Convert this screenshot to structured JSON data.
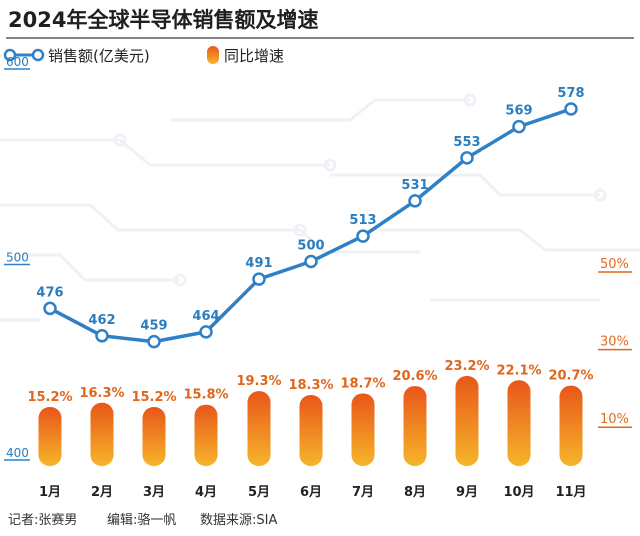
{
  "title": "2024年全球半导体销售额及增速",
  "legend": {
    "line": "销售额(亿美元)",
    "bar": "同比增速"
  },
  "footer": {
    "reporter": "记者:张赛男",
    "editor": "编辑:骆一帆",
    "source": "数据来源:SIA"
  },
  "colors": {
    "line": "#2f80c7",
    "bar_top": "#f6b52a",
    "bar_bottom": "#e8561a",
    "pct_text": "#e0661c"
  },
  "chart_data": {
    "type": "bar+line",
    "categories": [
      "1月",
      "2月",
      "3月",
      "4月",
      "5月",
      "6月",
      "7月",
      "8月",
      "9月",
      "10月",
      "11月"
    ],
    "series": [
      {
        "name": "销售额(亿美元)",
        "type": "line",
        "axis": "left",
        "values": [
          476,
          462,
          459,
          464,
          491,
          500,
          513,
          531,
          553,
          569,
          578
        ]
      },
      {
        "name": "同比增速",
        "type": "bar",
        "axis": "right",
        "values": [
          15.2,
          16.3,
          15.2,
          15.8,
          19.3,
          18.3,
          18.7,
          20.6,
          23.2,
          22.1,
          20.7
        ]
      }
    ],
    "line_labels": [
      "476",
      "462",
      "459",
      "464",
      "491",
      "500",
      "513",
      "531",
      "553",
      "569",
      "578"
    ],
    "bar_labels": [
      "15.2%",
      "16.3%",
      "15.2%",
      "15.8%",
      "19.3%",
      "18.3%",
      "18.7%",
      "20.6%",
      "23.2%",
      "22.1%",
      "20.7%"
    ],
    "left_axis": {
      "ticks": [
        400,
        500,
        600
      ],
      "tick_labels": [
        "400",
        "500",
        "600"
      ],
      "ylim": [
        400,
        600
      ]
    },
    "right_axis": {
      "ticks": [
        10,
        30,
        50
      ],
      "tick_labels": [
        "10%",
        "30%",
        "50%"
      ]
    }
  }
}
